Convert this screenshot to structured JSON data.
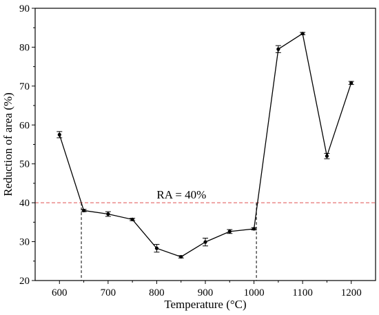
{
  "chart_data": {
    "type": "line",
    "title": "",
    "xlabel": "Temperature (°C)",
    "ylabel": "Reduction of area (%)",
    "xlim": [
      550,
      1250
    ],
    "ylim": [
      20,
      90
    ],
    "xticks": [
      600,
      700,
      800,
      900,
      1000,
      1100,
      1200
    ],
    "yticks": [
      20,
      30,
      40,
      50,
      60,
      70,
      80,
      90
    ],
    "grid": false,
    "legend": "none",
    "series": [
      {
        "x": [
          600,
          650,
          700,
          750,
          800,
          850,
          900,
          950,
          1000,
          1050,
          1100,
          1150,
          1200
        ],
        "y": [
          57.5,
          38.0,
          37.1,
          35.7,
          28.3,
          26.1,
          29.9,
          32.6,
          33.3,
          79.5,
          83.5,
          52.0,
          70.8
        ],
        "err": [
          0.8,
          0.3,
          0.6,
          0.3,
          1.0,
          0.3,
          1.0,
          0.5,
          0.3,
          0.9,
          0.3,
          0.7,
          0.4
        ],
        "color": "#000000"
      }
    ],
    "reference_line": {
      "y": 40,
      "label": "RA = 40%",
      "color": "#e05050"
    },
    "drop_lines_x": [
      645,
      1005
    ]
  }
}
